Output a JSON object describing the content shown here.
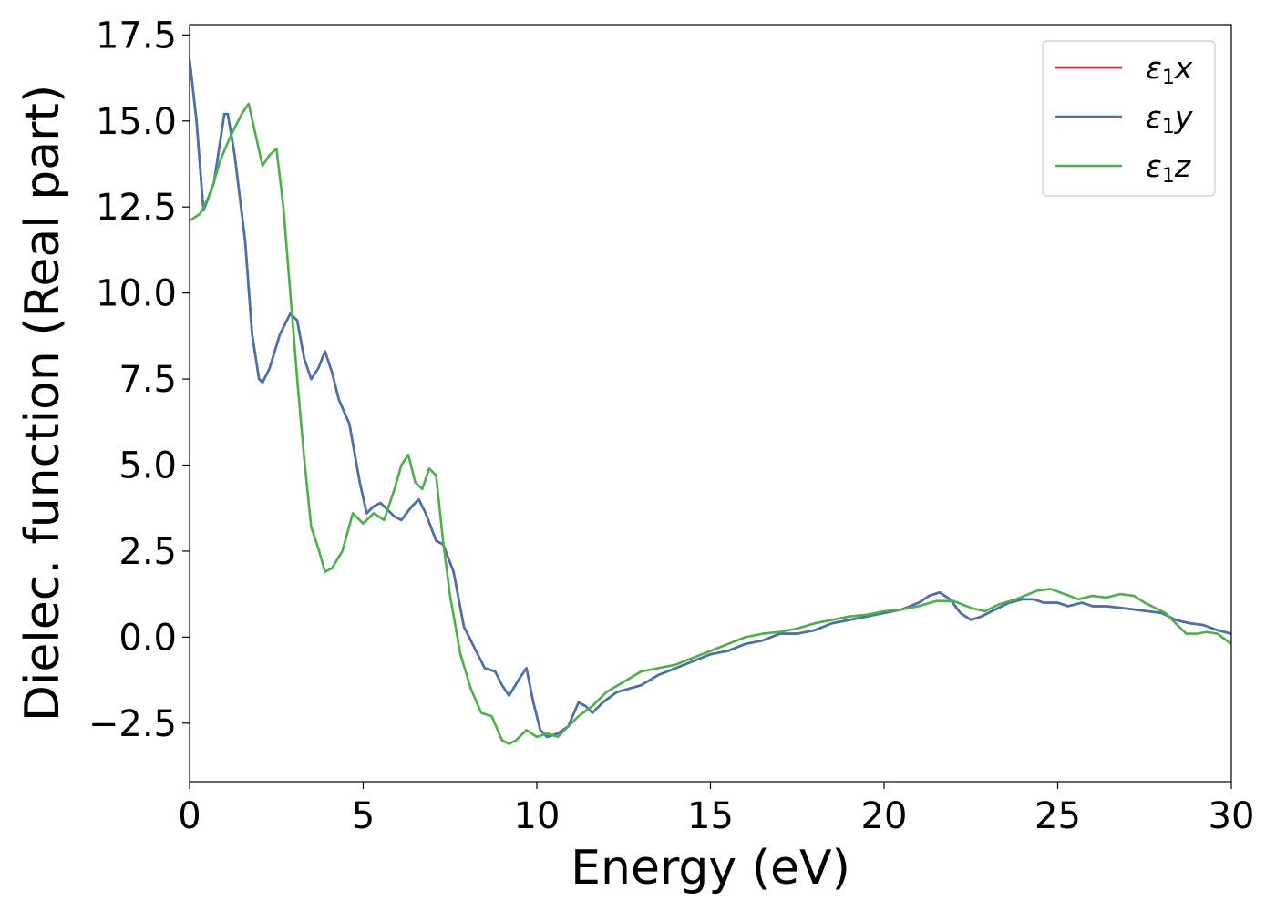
{
  "chart_data": {
    "type": "line",
    "xlabel": "Energy (eV)",
    "ylabel": "Dielec. function (Real part)",
    "xlim": [
      0,
      30
    ],
    "ylim": [
      -4.2,
      17.8
    ],
    "xticks": [
      0,
      5,
      10,
      15,
      20,
      25,
      30
    ],
    "xtick_labels": [
      "0",
      "5",
      "10",
      "15",
      "20",
      "25",
      "30"
    ],
    "yticks": [
      -2.5,
      0.0,
      2.5,
      5.0,
      7.5,
      10.0,
      12.5,
      15.0,
      17.5
    ],
    "ytick_labels": [
      "−2.5",
      "0.0",
      "2.5",
      "5.0",
      "7.5",
      "10.0",
      "12.5",
      "15.0",
      "17.5"
    ],
    "grid": false,
    "legend_position": "top-right",
    "series": [
      {
        "name": "ε₁x",
        "label_base": "ε",
        "label_sub": "1",
        "label_tail": "x",
        "color": "#e41a1c",
        "x": [
          0,
          0.2,
          0.4,
          0.7,
          1.0,
          1.1,
          1.3,
          1.6,
          1.8,
          2.0,
          2.1,
          2.3,
          2.6,
          2.9,
          3.1,
          3.3,
          3.5,
          3.7,
          3.9,
          4.1,
          4.3,
          4.6,
          4.9,
          5.1,
          5.3,
          5.5,
          5.7,
          5.9,
          6.1,
          6.4,
          6.6,
          6.8,
          7.1,
          7.3,
          7.6,
          7.9,
          8.2,
          8.5,
          8.8,
          9.0,
          9.2,
          9.5,
          9.7,
          9.9,
          10.1,
          10.3,
          10.6,
          10.9,
          11.2,
          11.4,
          11.6,
          11.9,
          12.3,
          13.0,
          13.5,
          14.0,
          14.5,
          15.0,
          15.5,
          16.0,
          16.5,
          17.0,
          17.5,
          18.0,
          18.5,
          19.0,
          19.5,
          20.0,
          20.5,
          21.0,
          21.3,
          21.6,
          21.9,
          22.2,
          22.5,
          22.8,
          23.2,
          23.6,
          24.0,
          24.3,
          24.6,
          25.0,
          25.3,
          25.7,
          26.0,
          26.4,
          26.8,
          27.2,
          27.6,
          28.0,
          28.4,
          28.8,
          29.2,
          29.6,
          30.0
        ],
        "y": [
          16.8,
          15.0,
          12.4,
          13.2,
          15.2,
          15.2,
          14.0,
          11.5,
          8.8,
          7.5,
          7.4,
          7.8,
          8.8,
          9.4,
          9.2,
          8.1,
          7.5,
          7.8,
          8.3,
          7.7,
          6.9,
          6.2,
          4.5,
          3.6,
          3.8,
          3.9,
          3.7,
          3.5,
          3.4,
          3.8,
          4.0,
          3.6,
          2.8,
          2.7,
          1.9,
          0.3,
          -0.3,
          -0.9,
          -1.0,
          -1.4,
          -1.7,
          -1.2,
          -0.9,
          -1.9,
          -2.7,
          -2.9,
          -2.8,
          -2.6,
          -1.9,
          -2.0,
          -2.2,
          -1.9,
          -1.6,
          -1.4,
          -1.1,
          -0.9,
          -0.7,
          -0.5,
          -0.4,
          -0.2,
          -0.1,
          0.1,
          0.1,
          0.2,
          0.4,
          0.5,
          0.6,
          0.7,
          0.8,
          1.0,
          1.2,
          1.3,
          1.1,
          0.7,
          0.5,
          0.6,
          0.8,
          1.0,
          1.1,
          1.1,
          1.0,
          1.0,
          0.9,
          1.0,
          0.9,
          0.9,
          0.85,
          0.8,
          0.75,
          0.7,
          0.5,
          0.4,
          0.35,
          0.2,
          0.1
        ]
      },
      {
        "name": "ε₁y",
        "label_base": "ε",
        "label_sub": "1",
        "label_tail": "y",
        "color": "#4474b0",
        "x": [
          0,
          0.2,
          0.4,
          0.7,
          1.0,
          1.1,
          1.3,
          1.6,
          1.8,
          2.0,
          2.1,
          2.3,
          2.6,
          2.9,
          3.1,
          3.3,
          3.5,
          3.7,
          3.9,
          4.1,
          4.3,
          4.6,
          4.9,
          5.1,
          5.3,
          5.5,
          5.7,
          5.9,
          6.1,
          6.4,
          6.6,
          6.8,
          7.1,
          7.3,
          7.6,
          7.9,
          8.2,
          8.5,
          8.8,
          9.0,
          9.2,
          9.5,
          9.7,
          9.9,
          10.1,
          10.3,
          10.6,
          10.9,
          11.2,
          11.4,
          11.6,
          11.9,
          12.3,
          13.0,
          13.5,
          14.0,
          14.5,
          15.0,
          15.5,
          16.0,
          16.5,
          17.0,
          17.5,
          18.0,
          18.5,
          19.0,
          19.5,
          20.0,
          20.5,
          21.0,
          21.3,
          21.6,
          21.9,
          22.2,
          22.5,
          22.8,
          23.2,
          23.6,
          24.0,
          24.3,
          24.6,
          25.0,
          25.3,
          25.7,
          26.0,
          26.4,
          26.8,
          27.2,
          27.6,
          28.0,
          28.4,
          28.8,
          29.2,
          29.6,
          30.0
        ],
        "y": [
          16.8,
          15.0,
          12.4,
          13.2,
          15.2,
          15.2,
          14.0,
          11.5,
          8.8,
          7.5,
          7.4,
          7.8,
          8.8,
          9.4,
          9.2,
          8.1,
          7.5,
          7.8,
          8.3,
          7.7,
          6.9,
          6.2,
          4.5,
          3.6,
          3.8,
          3.9,
          3.7,
          3.5,
          3.4,
          3.8,
          4.0,
          3.6,
          2.8,
          2.7,
          1.9,
          0.3,
          -0.3,
          -0.9,
          -1.0,
          -1.4,
          -1.7,
          -1.2,
          -0.9,
          -1.9,
          -2.7,
          -2.9,
          -2.8,
          -2.6,
          -1.9,
          -2.0,
          -2.2,
          -1.9,
          -1.6,
          -1.4,
          -1.1,
          -0.9,
          -0.7,
          -0.5,
          -0.4,
          -0.2,
          -0.1,
          0.1,
          0.1,
          0.2,
          0.4,
          0.5,
          0.6,
          0.7,
          0.8,
          1.0,
          1.2,
          1.3,
          1.1,
          0.7,
          0.5,
          0.6,
          0.8,
          1.0,
          1.1,
          1.1,
          1.0,
          1.0,
          0.9,
          1.0,
          0.9,
          0.9,
          0.85,
          0.8,
          0.75,
          0.7,
          0.5,
          0.4,
          0.35,
          0.2,
          0.1
        ]
      },
      {
        "name": "ε₁z",
        "label_base": "ε",
        "label_sub": "1",
        "label_tail": "z",
        "color": "#4daf4a",
        "x": [
          0,
          0.3,
          0.6,
          0.9,
          1.2,
          1.5,
          1.7,
          1.9,
          2.1,
          2.3,
          2.5,
          2.7,
          2.9,
          3.1,
          3.3,
          3.5,
          3.7,
          3.9,
          4.1,
          4.4,
          4.7,
          5.0,
          5.3,
          5.6,
          5.9,
          6.1,
          6.3,
          6.5,
          6.7,
          6.9,
          7.1,
          7.3,
          7.5,
          7.8,
          8.1,
          8.4,
          8.7,
          9.0,
          9.2,
          9.4,
          9.7,
          10.0,
          10.3,
          10.6,
          10.9,
          11.2,
          11.6,
          12.0,
          12.5,
          13.0,
          13.5,
          14.0,
          14.5,
          15.0,
          15.5,
          16.0,
          16.5,
          17.0,
          17.5,
          18.0,
          18.5,
          19.0,
          19.5,
          20.0,
          20.5,
          21.0,
          21.5,
          22.0,
          22.5,
          22.9,
          23.3,
          23.8,
          24.4,
          24.8,
          25.2,
          25.6,
          26.0,
          26.4,
          26.8,
          27.2,
          27.5,
          27.8,
          28.1,
          28.4,
          28.7,
          29.0,
          29.3,
          29.6,
          30.0
        ],
        "y": [
          12.1,
          12.3,
          12.9,
          13.9,
          14.6,
          15.2,
          15.5,
          14.6,
          13.7,
          14.0,
          14.2,
          12.5,
          10.0,
          7.5,
          5.2,
          3.2,
          2.6,
          1.9,
          2.0,
          2.5,
          3.6,
          3.3,
          3.6,
          3.4,
          4.3,
          5.0,
          5.3,
          4.5,
          4.3,
          4.9,
          4.7,
          2.8,
          1.2,
          -0.5,
          -1.5,
          -2.2,
          -2.3,
          -3.0,
          -3.1,
          -3.0,
          -2.7,
          -2.9,
          -2.8,
          -2.9,
          -2.6,
          -2.3,
          -2.0,
          -1.6,
          -1.3,
          -1.0,
          -0.9,
          -0.8,
          -0.6,
          -0.4,
          -0.2,
          0.0,
          0.1,
          0.15,
          0.25,
          0.4,
          0.5,
          0.6,
          0.65,
          0.75,
          0.8,
          0.9,
          1.05,
          1.05,
          0.85,
          0.75,
          0.95,
          1.1,
          1.35,
          1.4,
          1.25,
          1.1,
          1.2,
          1.15,
          1.25,
          1.2,
          1.0,
          0.85,
          0.7,
          0.4,
          0.1,
          0.1,
          0.15,
          0.1,
          -0.2
        ]
      }
    ]
  }
}
